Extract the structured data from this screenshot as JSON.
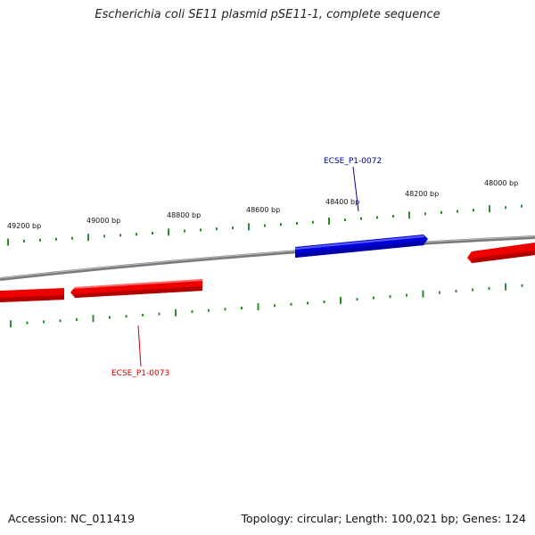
{
  "title": "Escherichia coli SE11 plasmid pSE11-1, complete sequence",
  "accession_label": "Accession: NC_011419",
  "summary_label": "Topology: circular; Length: 100,021 bp; Genes: 124",
  "colors": {
    "backbone": "#7a7a7a",
    "forward_gene": "#0000dd",
    "reverse_gene": "#ee0000",
    "ticks": "#2e8b2e",
    "forward_label": "#000099",
    "reverse_label": "#cc0000"
  },
  "bp_labels": [
    "49200 bp",
    "49000 bp",
    "48800 bp",
    "48600 bp",
    "48400 bp",
    "48200 bp",
    "48000 bp"
  ],
  "genes": [
    {
      "name": "ECSE_P1-0072",
      "strand": "forward"
    },
    {
      "name": "ECSE_P1-0073",
      "strand": "reverse"
    }
  ]
}
